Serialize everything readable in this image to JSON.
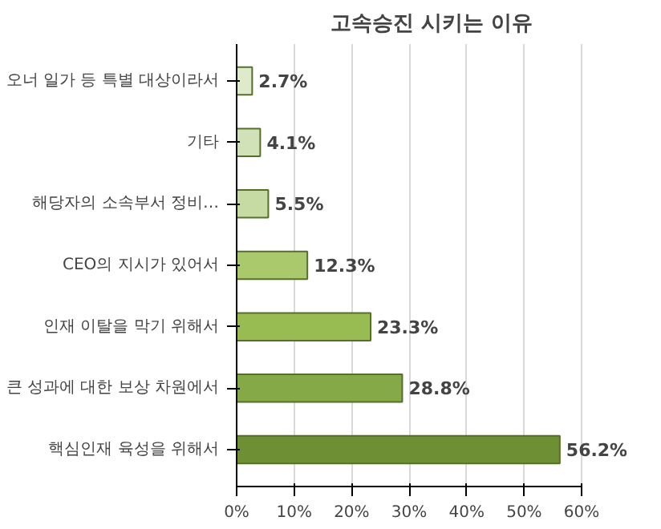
{
  "chart_data": {
    "type": "bar",
    "orientation": "horizontal",
    "title": "고속승진 시키는 이유",
    "categories": [
      "오너 일가 등 특별 대상이라서",
      "기타",
      "해당자의 소속부서 정비…",
      "CEO의 지시가 있어서",
      "인재 이탈을 막기 위해서",
      "큰 성과에 대한 보상 차원에서",
      "핵심인재 육성을 위해서"
    ],
    "values": [
      2.7,
      4.1,
      5.5,
      12.3,
      23.3,
      28.8,
      56.2
    ],
    "value_labels": [
      "2.7%",
      "4.1%",
      "5.5%",
      "12.3%",
      "23.3%",
      "28.8%",
      "56.2%"
    ],
    "colors": [
      "#dfe9cc",
      "#d2e2b8",
      "#c6dba4",
      "#a9c96c",
      "#98bb52",
      "#86a947",
      "#6f8f35"
    ],
    "xlim": [
      0,
      60
    ],
    "xticks": [
      {
        "value": 0,
        "label": "0%"
      },
      {
        "value": 10,
        "label": "10%"
      },
      {
        "value": 20,
        "label": "20%"
      },
      {
        "value": 30,
        "label": "30%"
      },
      {
        "value": 40,
        "label": "40%"
      },
      {
        "value": 50,
        "label": "50%"
      },
      {
        "value": 60,
        "label": "60%"
      }
    ],
    "grid": "x"
  }
}
